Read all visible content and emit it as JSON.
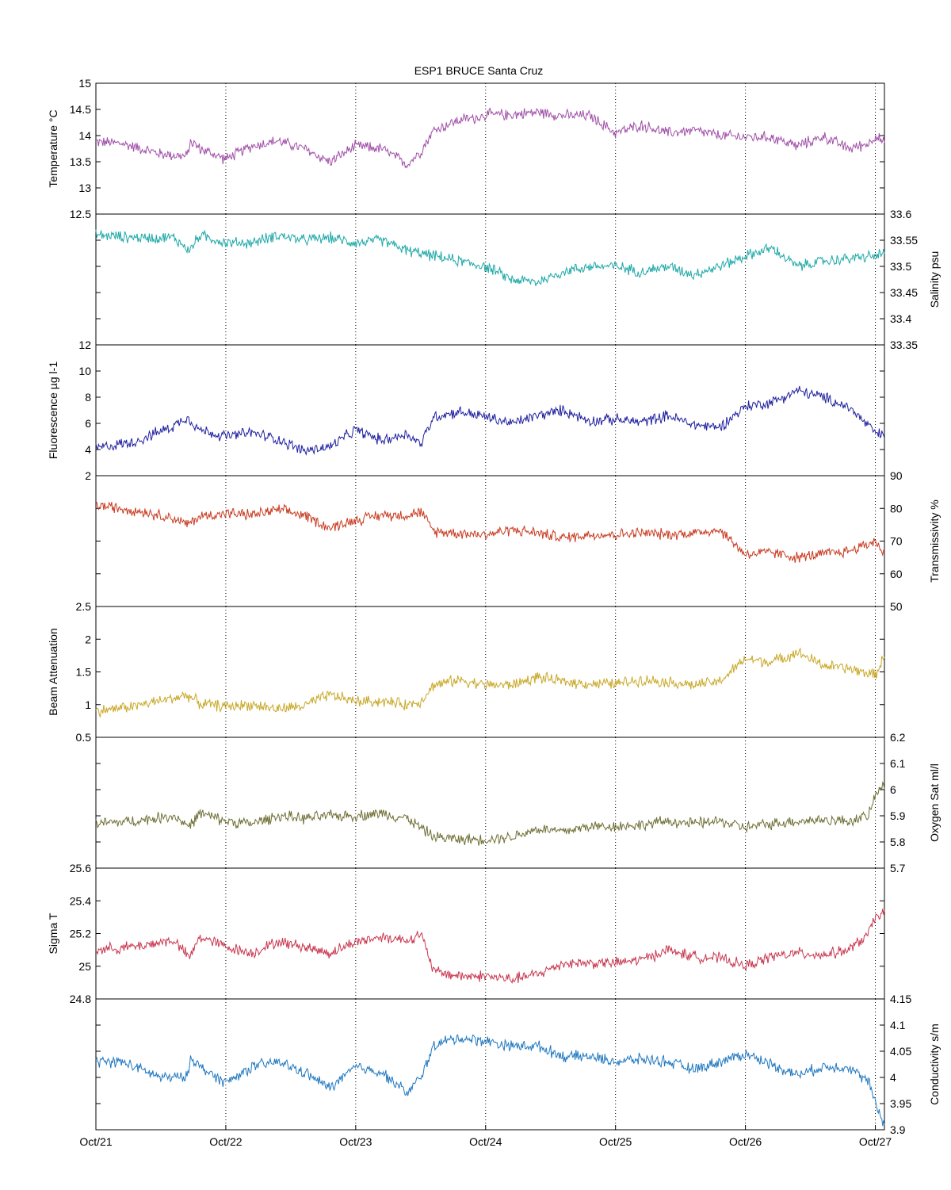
{
  "chart_data": {
    "type": "line",
    "title": "ESP1 BRUCE Santa Cruz",
    "x_ticks": [
      "Oct/21",
      "Oct/22",
      "Oct/23",
      "Oct/24",
      "Oct/25",
      "Oct/26",
      "Oct/27"
    ],
    "x_range_days": [
      0,
      6.07
    ],
    "grid": "vertical dotted lines at day ticks",
    "panels": [
      {
        "key": "temperature",
        "ylabel": "Temperature °C",
        "axis_side": "left",
        "ylim": [
          12.5,
          15
        ],
        "ticks": [
          12.5,
          13,
          13.5,
          14,
          14.5,
          15
        ],
        "tick_labels": [
          "12.5",
          "13",
          "13.5",
          "14",
          "14.5",
          "15"
        ],
        "color": "#a050a8",
        "x": [
          0,
          0.2,
          0.5,
          0.7,
          0.73,
          0.8,
          1.0,
          1.2,
          1.4,
          1.6,
          1.8,
          2.0,
          2.2,
          2.4,
          2.5,
          2.6,
          2.7,
          2.8,
          2.95,
          3.0,
          3.2,
          3.4,
          3.6,
          3.8,
          4.0,
          4.2,
          4.4,
          4.6,
          4.8,
          5.0,
          5.2,
          5.4,
          5.6,
          5.8,
          5.95,
          6.0,
          6.07
        ],
        "y": [
          13.88,
          13.85,
          13.65,
          13.6,
          13.9,
          13.75,
          13.55,
          13.8,
          13.9,
          13.75,
          13.5,
          13.8,
          13.75,
          13.45,
          13.7,
          14.1,
          14.2,
          14.3,
          14.35,
          14.4,
          14.4,
          14.45,
          14.38,
          14.38,
          14.05,
          14.2,
          14.05,
          14.1,
          14.0,
          13.97,
          13.97,
          13.8,
          13.98,
          13.75,
          13.85,
          14.0,
          13.85
        ]
      },
      {
        "key": "salinity",
        "ylabel": "Salinity psu",
        "axis_side": "right",
        "ylim": [
          33.35,
          33.6
        ],
        "ticks": [
          33.35,
          33.4,
          33.45,
          33.5,
          33.55,
          33.6
        ],
        "tick_labels": [
          "33.35",
          "33.4",
          "33.45",
          "33.5",
          "33.55",
          "33.6"
        ],
        "color": "#20a8a8",
        "x": [
          0,
          0.3,
          0.6,
          0.72,
          0.8,
          1.0,
          1.2,
          1.4,
          1.6,
          1.8,
          2.0,
          2.2,
          2.4,
          2.6,
          2.8,
          3.0,
          3.2,
          3.4,
          3.6,
          3.8,
          4.0,
          4.2,
          4.4,
          4.6,
          4.8,
          5.0,
          5.2,
          5.4,
          5.6,
          5.8,
          6.0,
          6.07
        ],
        "y": [
          33.56,
          33.555,
          33.555,
          33.53,
          33.56,
          33.545,
          33.545,
          33.56,
          33.55,
          33.555,
          33.545,
          33.55,
          33.53,
          33.52,
          33.51,
          33.5,
          33.475,
          33.47,
          33.49,
          33.5,
          33.5,
          33.49,
          33.5,
          33.485,
          33.5,
          33.52,
          33.535,
          33.5,
          33.51,
          33.515,
          33.52,
          33.525
        ]
      },
      {
        "key": "fluorescence",
        "ylabel": "Fluorescence µg l-1",
        "axis_side": "left",
        "ylim": [
          2,
          12
        ],
        "ticks": [
          2,
          4,
          6,
          8,
          10,
          12
        ],
        "tick_labels": [
          "2",
          "4",
          "6",
          "8",
          "10",
          "12"
        ],
        "color": "#2020a0",
        "x": [
          0,
          0.3,
          0.6,
          0.7,
          0.8,
          1.0,
          1.2,
          1.4,
          1.6,
          1.8,
          2.0,
          2.2,
          2.4,
          2.5,
          2.6,
          2.8,
          3.0,
          3.2,
          3.4,
          3.6,
          3.8,
          4.0,
          4.2,
          4.4,
          4.6,
          4.8,
          5.0,
          5.2,
          5.4,
          5.6,
          5.8,
          6.0,
          6.07
        ],
        "y": [
          4.1,
          4.6,
          5.8,
          6.5,
          5.5,
          5.0,
          5.3,
          4.8,
          3.9,
          4.2,
          5.5,
          4.7,
          5.2,
          4.4,
          6.5,
          6.9,
          6.5,
          6.0,
          6.6,
          7.0,
          6.2,
          6.3,
          6.1,
          6.6,
          5.9,
          5.7,
          7.3,
          7.6,
          8.5,
          8.0,
          7.2,
          5.3,
          5.0
        ]
      },
      {
        "key": "transmissivity",
        "ylabel": "Transmissivity %",
        "axis_side": "right",
        "ylim": [
          50,
          90
        ],
        "ticks": [
          50,
          60,
          70,
          80,
          90
        ],
        "tick_labels": [
          "50",
          "60",
          "70",
          "80",
          "90"
        ],
        "color": "#c83a20",
        "x": [
          0,
          0.3,
          0.6,
          0.7,
          0.8,
          1.0,
          1.2,
          1.4,
          1.6,
          1.8,
          2.0,
          2.2,
          2.4,
          2.5,
          2.6,
          2.8,
          3.0,
          3.2,
          3.4,
          3.6,
          3.8,
          4.0,
          4.2,
          4.4,
          4.6,
          4.8,
          5.0,
          5.2,
          5.4,
          5.6,
          5.8,
          6.0,
          6.07
        ],
        "y": [
          81,
          79.5,
          77,
          75,
          77.5,
          78.5,
          78,
          79.5,
          78,
          74,
          76.5,
          78,
          78,
          79,
          73,
          72.5,
          72,
          73.5,
          72.5,
          71,
          72,
          72,
          72.5,
          72,
          72.5,
          73.5,
          66,
          66.5,
          65,
          66,
          67,
          70,
          66
        ]
      },
      {
        "key": "beam_attenuation",
        "ylabel": "Beam Attenuation",
        "axis_side": "left",
        "ylim": [
          0.5,
          2.5
        ],
        "ticks": [
          0.5,
          1,
          1.5,
          2,
          2.5
        ],
        "tick_labels": [
          "0.5",
          "1",
          "1.5",
          "2",
          "2.5"
        ],
        "color": "#c8a828",
        "x": [
          0,
          0.3,
          0.6,
          0.7,
          0.8,
          1.0,
          1.2,
          1.4,
          1.6,
          1.8,
          2.0,
          2.2,
          2.4,
          2.5,
          2.6,
          2.8,
          3.0,
          3.2,
          3.4,
          3.6,
          3.8,
          4.0,
          4.2,
          4.4,
          4.6,
          4.8,
          5.0,
          5.2,
          5.4,
          5.6,
          5.8,
          6.0,
          6.07
        ],
        "y": [
          0.9,
          0.98,
          1.1,
          1.15,
          1.02,
          0.97,
          1.0,
          0.93,
          0.98,
          1.15,
          1.05,
          1.05,
          1.0,
          1.05,
          1.3,
          1.38,
          1.3,
          1.3,
          1.42,
          1.35,
          1.32,
          1.32,
          1.38,
          1.35,
          1.3,
          1.35,
          1.7,
          1.65,
          1.8,
          1.6,
          1.55,
          1.45,
          1.75
        ]
      },
      {
        "key": "oxygen",
        "ylabel": "Oxygen Sat ml/l",
        "axis_side": "right",
        "ylim": [
          5.7,
          6.2
        ],
        "ticks": [
          5.7,
          5.8,
          5.9,
          6,
          6.1,
          6.2
        ],
        "tick_labels": [
          "5.7",
          "5.8",
          "5.9",
          "6",
          "6.1",
          "6.2"
        ],
        "color": "#707038",
        "x": [
          0,
          0.3,
          0.6,
          0.72,
          0.8,
          1.0,
          1.2,
          1.4,
          1.6,
          1.8,
          2.0,
          2.2,
          2.4,
          2.6,
          2.8,
          3.0,
          3.2,
          3.4,
          3.6,
          3.8,
          4.0,
          4.2,
          4.4,
          4.6,
          4.8,
          5.0,
          5.2,
          5.4,
          5.6,
          5.8,
          5.95,
          6.0,
          6.07
        ],
        "y": [
          5.87,
          5.88,
          5.9,
          5.86,
          5.91,
          5.88,
          5.87,
          5.9,
          5.89,
          5.9,
          5.9,
          5.91,
          5.89,
          5.82,
          5.81,
          5.81,
          5.82,
          5.85,
          5.84,
          5.86,
          5.86,
          5.865,
          5.88,
          5.87,
          5.88,
          5.855,
          5.87,
          5.88,
          5.885,
          5.88,
          5.9,
          5.98,
          6.02
        ]
      },
      {
        "key": "sigma_t",
        "ylabel": "Sigma T",
        "axis_side": "left",
        "ylim": [
          24.8,
          25.6
        ],
        "ticks": [
          24.8,
          25,
          25.2,
          25.4,
          25.6
        ],
        "tick_labels": [
          "24.8",
          "25",
          "25.2",
          "25.4",
          "25.6"
        ],
        "color": "#c83850",
        "x": [
          0,
          0.3,
          0.6,
          0.72,
          0.8,
          1.0,
          1.2,
          1.4,
          1.6,
          1.8,
          2.0,
          2.2,
          2.4,
          2.5,
          2.6,
          2.8,
          3.0,
          3.2,
          3.4,
          3.6,
          3.8,
          4.0,
          4.2,
          4.4,
          4.6,
          4.8,
          5.0,
          5.2,
          5.4,
          5.6,
          5.8,
          5.95,
          6.0,
          6.07
        ],
        "y": [
          25.1,
          25.12,
          25.16,
          25.05,
          25.18,
          25.12,
          25.08,
          25.15,
          25.12,
          25.08,
          25.15,
          25.18,
          25.16,
          25.2,
          24.97,
          24.94,
          24.94,
          24.92,
          24.95,
          25.02,
          25.02,
          25.02,
          25.04,
          25.1,
          25.06,
          25.05,
          25.0,
          25.06,
          25.08,
          25.07,
          25.1,
          25.2,
          25.3,
          25.33
        ]
      },
      {
        "key": "conductivity",
        "ylabel": "Conductivity s/m",
        "axis_side": "right",
        "ylim": [
          3.9,
          4.15
        ],
        "ticks": [
          3.9,
          3.95,
          4,
          4.05,
          4.1,
          4.15
        ],
        "tick_labels": [
          "3.9",
          "3.95",
          "4",
          "4.05",
          "4.1",
          "4.15"
        ],
        "color": "#2078c0",
        "x": [
          0,
          0.2,
          0.5,
          0.7,
          0.73,
          0.8,
          1.0,
          1.2,
          1.4,
          1.6,
          1.8,
          2.0,
          2.2,
          2.4,
          2.5,
          2.6,
          2.7,
          2.8,
          3.0,
          3.2,
          3.4,
          3.6,
          3.8,
          4.0,
          4.2,
          4.4,
          4.6,
          4.8,
          5.0,
          5.2,
          5.4,
          5.6,
          5.8,
          5.95,
          6.0,
          6.07
        ],
        "y": [
          4.03,
          4.03,
          4.0,
          4.0,
          4.04,
          4.02,
          3.99,
          4.02,
          4.03,
          4.01,
          3.98,
          4.02,
          4.01,
          3.97,
          4.0,
          4.06,
          4.07,
          4.075,
          4.07,
          4.06,
          4.06,
          4.04,
          4.04,
          4.03,
          4.035,
          4.03,
          4.015,
          4.03,
          4.045,
          4.025,
          4.005,
          4.02,
          4.02,
          3.99,
          3.95,
          3.91
        ]
      }
    ]
  }
}
